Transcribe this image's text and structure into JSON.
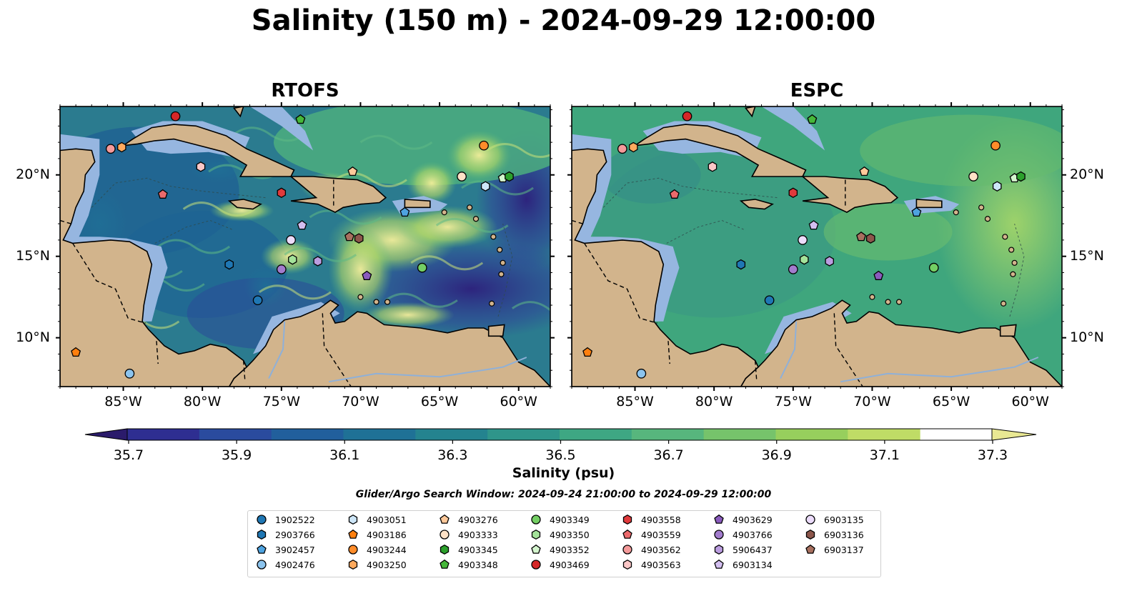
{
  "title": "Salinity (150 m) - 2024-09-29 12:00:00",
  "panels": [
    {
      "name": "RTOFS"
    },
    {
      "name": "ESPC"
    }
  ],
  "x_ticks": [
    "85°W",
    "80°W",
    "75°W",
    "70°W",
    "65°W",
    "60°W"
  ],
  "y_ticks": [
    "20°N",
    "15°N",
    "10°N"
  ],
  "colorbar": {
    "label": "Salinity (psu)",
    "ticks": [
      "35.7",
      "35.9",
      "36.1",
      "36.3",
      "36.5",
      "36.7",
      "36.9",
      "37.1",
      "37.3"
    ],
    "colors": [
      "#2b1b6b",
      "#2e2e91",
      "#2a4b9e",
      "#215f9c",
      "#1f7196",
      "#24838f",
      "#2f958a",
      "#3ea783",
      "#57b67d",
      "#76c36b",
      "#97cf5d",
      "#bfdc66",
      "#e9e893"
    ]
  },
  "search_window": "Glider/Argo Search Window: 2024-09-24 21:00:00 to 2024-09-29 12:00:00",
  "legend": [
    {
      "id": "1902522",
      "color": "#1f77b4",
      "marker": "circle"
    },
    {
      "id": "2903766",
      "color": "#1f77b4",
      "marker": "hexagon"
    },
    {
      "id": "3902457",
      "color": "#4ea3e0",
      "marker": "pentagon"
    },
    {
      "id": "4902476",
      "color": "#8cc4ee",
      "marker": "circle"
    },
    {
      "id": "4903051",
      "color": "#cde6f8",
      "marker": "hexagon"
    },
    {
      "id": "4903186",
      "color": "#ff7f0e",
      "marker": "pentagon"
    },
    {
      "id": "4903244",
      "color": "#ff8c2a",
      "marker": "circle"
    },
    {
      "id": "4903250",
      "color": "#ffaa5e",
      "marker": "hexagon"
    },
    {
      "id": "4903276",
      "color": "#ffc99a",
      "marker": "pentagon"
    },
    {
      "id": "4903333",
      "color": "#ffe2c7",
      "marker": "circle"
    },
    {
      "id": "4903345",
      "color": "#2ca02c",
      "marker": "hexagon"
    },
    {
      "id": "4903348",
      "color": "#46b83a",
      "marker": "pentagon"
    },
    {
      "id": "4903349",
      "color": "#74cf64",
      "marker": "circle"
    },
    {
      "id": "4903350",
      "color": "#a4e39a",
      "marker": "hexagon"
    },
    {
      "id": "4903352",
      "color": "#d4f5ce",
      "marker": "pentagon"
    },
    {
      "id": "4903469",
      "color": "#d62728",
      "marker": "circle"
    },
    {
      "id": "4903558",
      "color": "#e03a3c",
      "marker": "hexagon"
    },
    {
      "id": "4903559",
      "color": "#ec6a6c",
      "marker": "pentagon"
    },
    {
      "id": "4903562",
      "color": "#f49a9a",
      "marker": "circle"
    },
    {
      "id": "4903563",
      "color": "#fbc7c7",
      "marker": "hexagon"
    },
    {
      "id": "4903629",
      "color": "#8a5bbd",
      "marker": "pentagon"
    },
    {
      "id": "4903766",
      "color": "#a27ccd",
      "marker": "circle"
    },
    {
      "id": "5906437",
      "color": "#bb9de0",
      "marker": "hexagon"
    },
    {
      "id": "6903134",
      "color": "#d3bff0",
      "marker": "pentagon"
    },
    {
      "id": "6903135",
      "color": "#ecdcfb",
      "marker": "circle"
    },
    {
      "id": "6903136",
      "color": "#8c564b",
      "marker": "hexagon"
    },
    {
      "id": "6903137",
      "color": "#a8705f",
      "marker": "pentagon"
    }
  ],
  "floats": [
    {
      "id": "4903469",
      "lon": -81.7,
      "lat": 23.6
    },
    {
      "id": "4903562",
      "lon": -85.8,
      "lat": 21.6
    },
    {
      "id": "4903250",
      "lon": -85.1,
      "lat": 21.7
    },
    {
      "id": "4903348",
      "lon": -73.8,
      "lat": 23.4
    },
    {
      "id": "4903563",
      "lon": -80.1,
      "lat": 20.5
    },
    {
      "id": "4903276",
      "lon": -70.5,
      "lat": 20.2
    },
    {
      "id": "4903244",
      "lon": -62.2,
      "lat": 21.8
    },
    {
      "id": "4903333",
      "lon": -63.6,
      "lat": 19.9
    },
    {
      "id": "4903051",
      "lon": -62.1,
      "lat": 19.3
    },
    {
      "id": "4903352",
      "lon": -61.0,
      "lat": 19.8
    },
    {
      "id": "4903345",
      "lon": -60.6,
      "lat": 19.9
    },
    {
      "id": "4903559",
      "lon": -82.5,
      "lat": 18.8
    },
    {
      "id": "4903558",
      "lon": -75.0,
      "lat": 18.9
    },
    {
      "id": "3902457",
      "lon": -67.2,
      "lat": 17.7
    },
    {
      "id": "6903134",
      "lon": -73.7,
      "lat": 16.9
    },
    {
      "id": "6903135",
      "lon": -74.4,
      "lat": 16.0
    },
    {
      "id": "6903137",
      "lon": -70.7,
      "lat": 16.2
    },
    {
      "id": "6903136",
      "lon": -70.1,
      "lat": 16.1
    },
    {
      "id": "2903766",
      "lon": -78.3,
      "lat": 14.5
    },
    {
      "id": "4903350",
      "lon": -74.3,
      "lat": 14.8
    },
    {
      "id": "5906437",
      "lon": -72.7,
      "lat": 14.7
    },
    {
      "id": "4903766",
      "lon": -75.0,
      "lat": 14.2
    },
    {
      "id": "4903629",
      "lon": -69.6,
      "lat": 13.8
    },
    {
      "id": "4903349",
      "lon": -66.1,
      "lat": 14.3
    },
    {
      "id": "1902522",
      "lon": -76.5,
      "lat": 12.3
    },
    {
      "id": "4903186",
      "lon": -88.0,
      "lat": 9.1
    },
    {
      "id": "4902476",
      "lon": -84.6,
      "lat": 7.8
    }
  ]
}
